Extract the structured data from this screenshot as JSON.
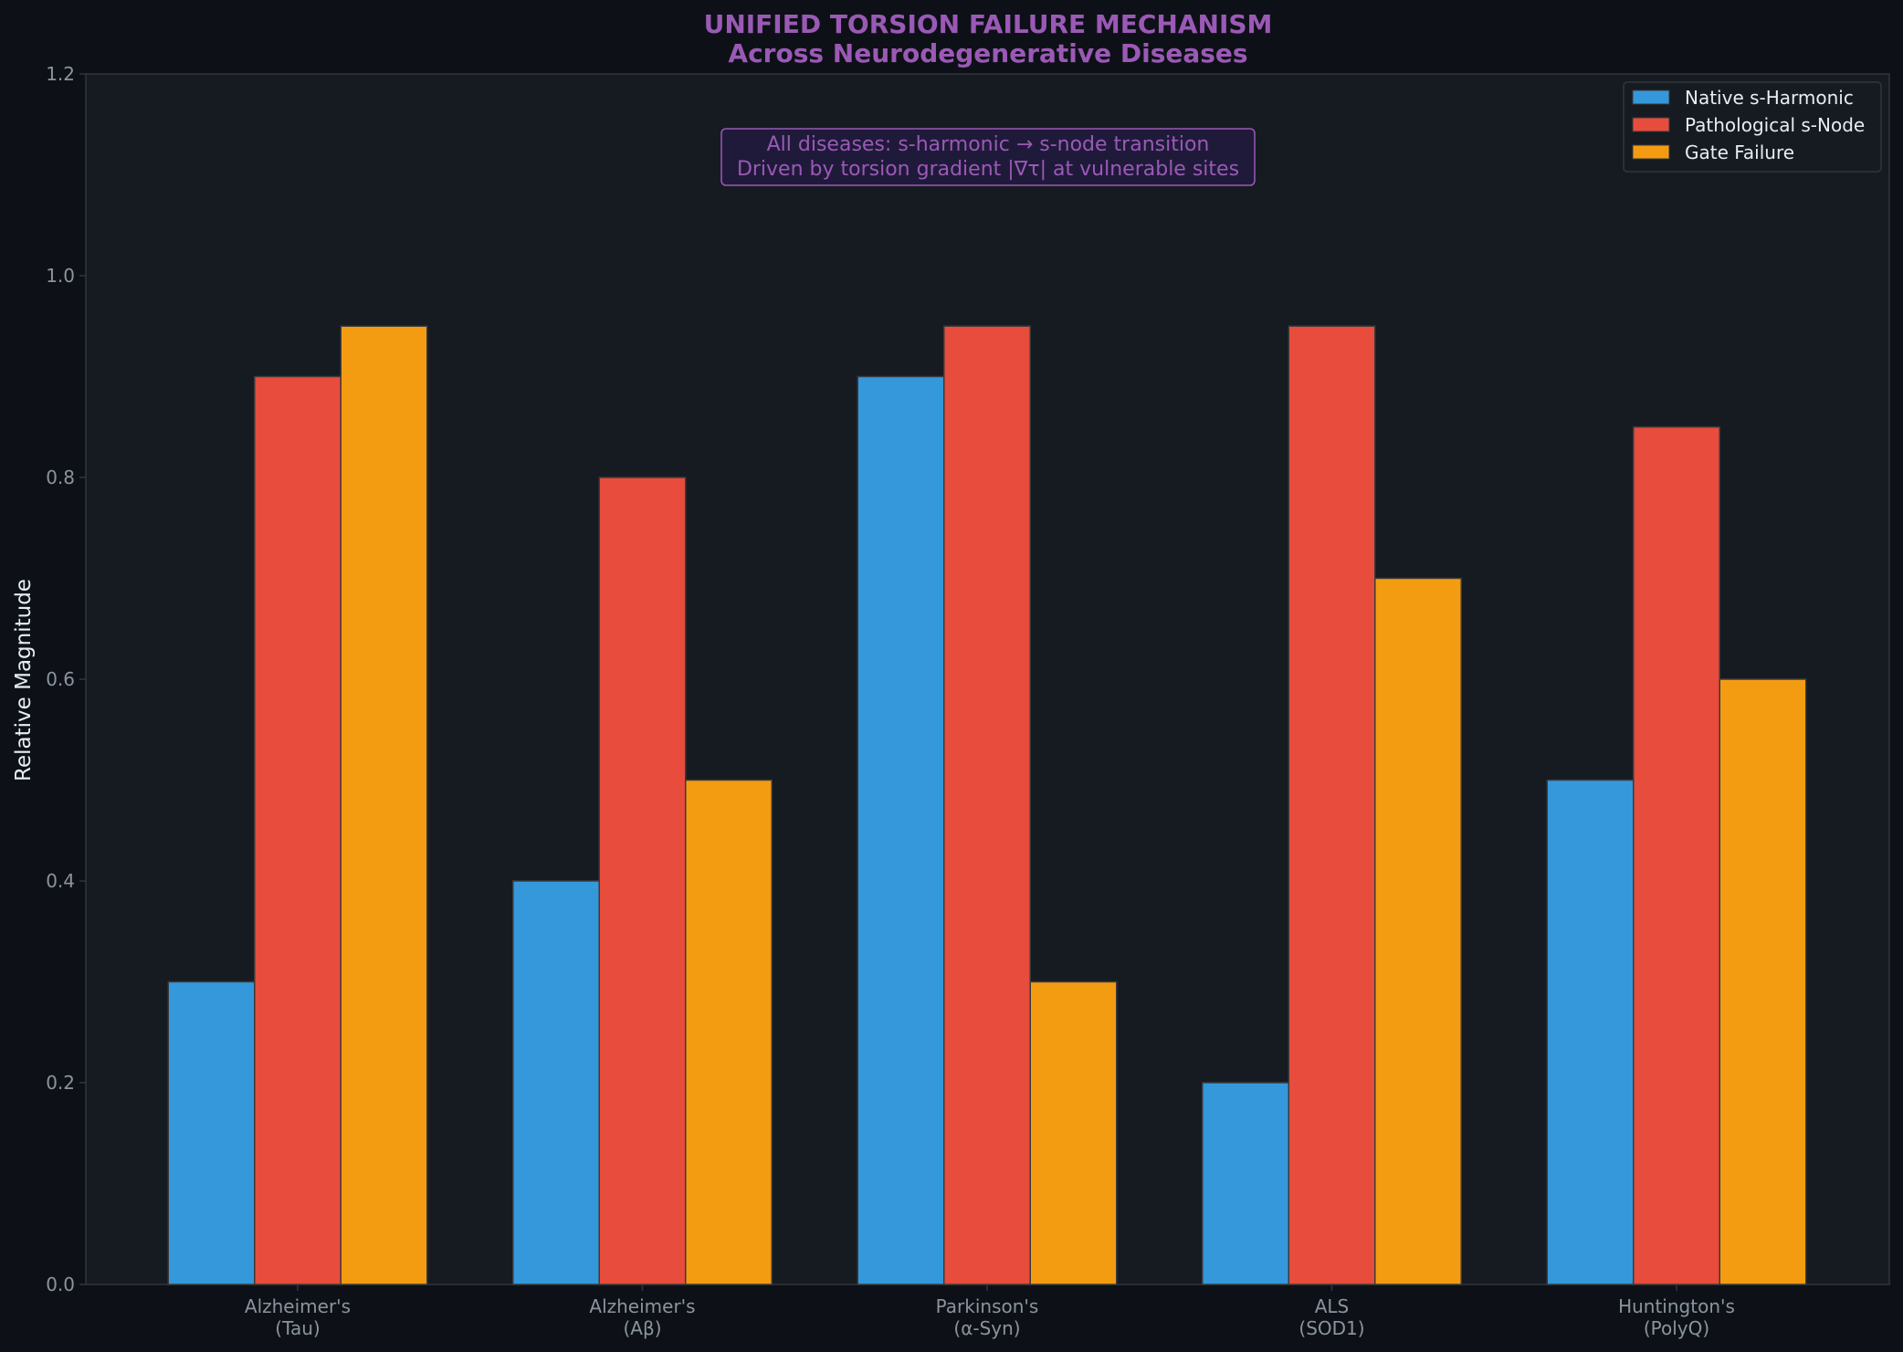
{
  "chart_data": {
    "type": "bar",
    "title": "UNIFIED TORSION FAILURE MECHANISM",
    "subtitle": "Across Neurodegenerative Diseases",
    "xlabel": "",
    "ylabel": "Relative Magnitude",
    "ylim": [
      0,
      1.2
    ],
    "yticks": [
      "0.0",
      "0.2",
      "0.4",
      "0.6",
      "0.8",
      "1.0",
      "1.2"
    ],
    "grid": false,
    "legend_position": "top-right",
    "categories": [
      [
        "Alzheimer's",
        "(Tau)"
      ],
      [
        "Alzheimer's",
        "(Aβ)"
      ],
      [
        "Parkinson's",
        "(α-Syn)"
      ],
      [
        "ALS",
        "(SOD1)"
      ],
      [
        "Huntington's",
        "(PolyQ)"
      ]
    ],
    "series": [
      {
        "name": "Native s-Harmonic",
        "color": "#3498db",
        "values": [
          0.3,
          0.4,
          0.9,
          0.2,
          0.5
        ]
      },
      {
        "name": "Pathological s-Node",
        "color": "#e74c3c",
        "values": [
          0.9,
          0.8,
          0.95,
          0.95,
          0.85
        ]
      },
      {
        "name": "Gate Failure",
        "color": "#f39c12",
        "values": [
          0.95,
          0.5,
          0.3,
          0.7,
          0.6
        ]
      }
    ],
    "annotation": {
      "line1": "All diseases: s-harmonic → s-node transition",
      "line2": "Driven by torsion gradient |∇τ| at vulnerable sites"
    }
  },
  "colors": {
    "figure_bg": "#0d1117",
    "plot_bg": "#161b22",
    "axis": "#30363d",
    "tick_text": "#8b949e",
    "label_text": "#e6edf3",
    "accent": "#9b59b6"
  }
}
